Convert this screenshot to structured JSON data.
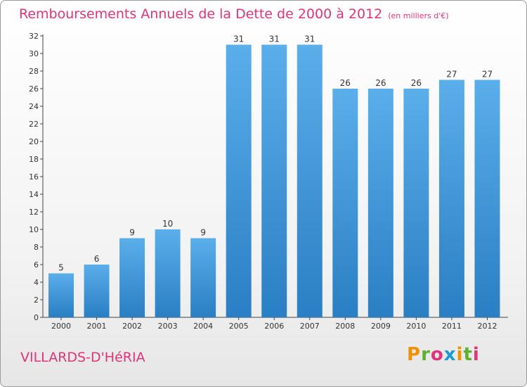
{
  "header": {
    "title": "Remboursements Annuels de la Dette de 2000 à 2012",
    "subtitle": "(en milliers d'€)"
  },
  "footer": {
    "commune": "VILLARDS-D'HéRIA",
    "logo": "Proxiti",
    "logo_colors": [
      "#f39200",
      "#5eb130",
      "#e0337a",
      "#1a9ad6",
      "#f39200",
      "#5eb130",
      "#e0337a"
    ]
  },
  "colors": {
    "bar_top": "#5aaeea",
    "bar_bottom": "#2a7fc4",
    "title": "#e0337a"
  },
  "chart_data": {
    "type": "bar",
    "categories": [
      "2000",
      "2001",
      "2002",
      "2003",
      "2004",
      "2005",
      "2006",
      "2007",
      "2008",
      "2009",
      "2010",
      "2011",
      "2012"
    ],
    "values": [
      5,
      6,
      9,
      10,
      9,
      31,
      31,
      31,
      26,
      26,
      26,
      27,
      27
    ],
    "title": "Remboursements Annuels de la Dette de 2000 à 2012",
    "subtitle": "(en milliers d'€)",
    "xlabel": "",
    "ylabel": "",
    "ylim": [
      0,
      32
    ],
    "yticks": [
      0,
      2,
      4,
      6,
      8,
      10,
      12,
      14,
      16,
      18,
      20,
      22,
      24,
      26,
      28,
      30,
      32
    ],
    "grid": false,
    "data_labels": true
  }
}
